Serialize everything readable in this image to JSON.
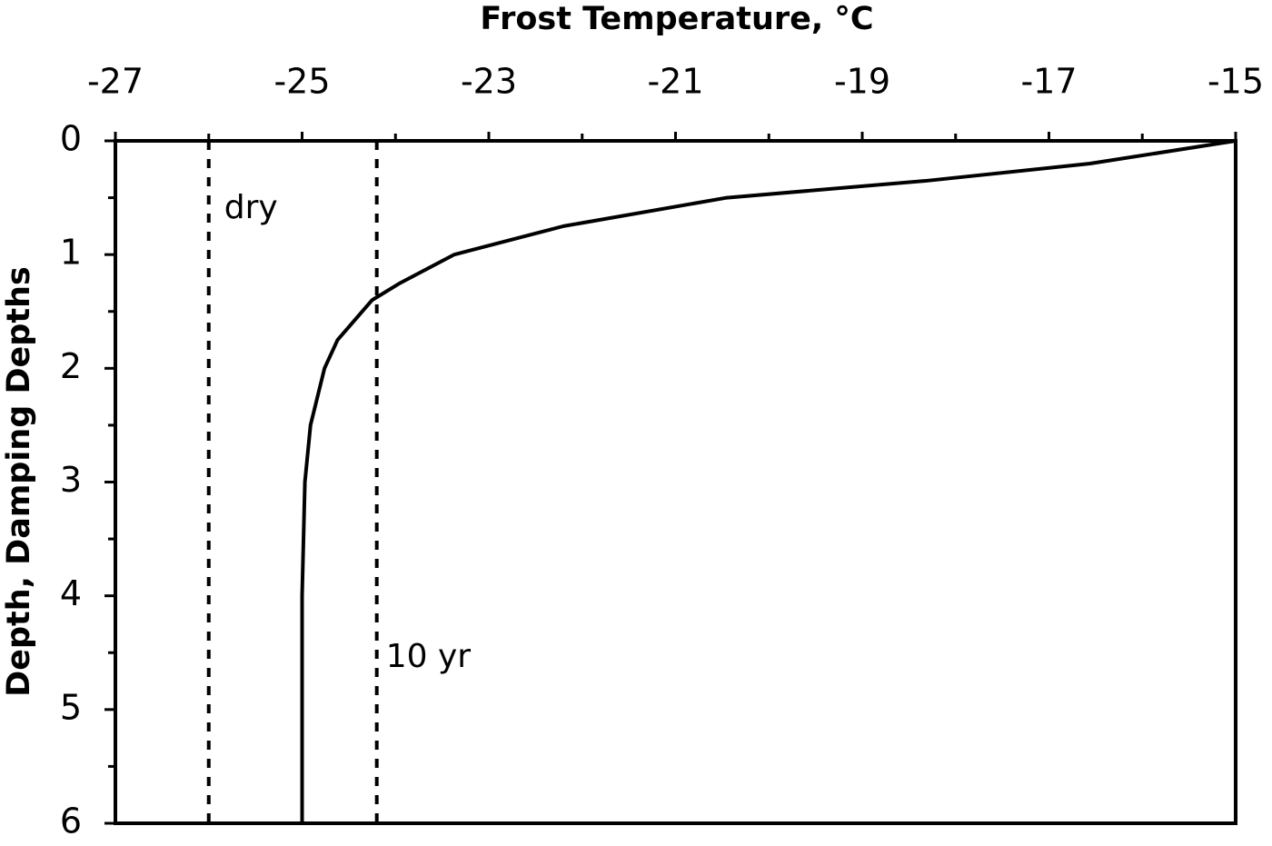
{
  "chart_data": {
    "type": "line",
    "title": "Frost Temperature, °C",
    "ylabel": "Depth, Damping Depths",
    "xlim": [
      -27,
      -15
    ],
    "xticks": [
      -27,
      -25,
      -23,
      -21,
      -19,
      -17,
      -15
    ],
    "xminorticks": [
      -26,
      -24,
      -22,
      -20,
      -18,
      -16
    ],
    "ylim": [
      0,
      6
    ],
    "yticks": [
      0,
      1,
      2,
      3,
      4,
      5,
      6
    ],
    "yminorticks": [
      0.5,
      1.5,
      2.5,
      3.5,
      4.5,
      5.5
    ],
    "y_inverted": true,
    "series": [
      {
        "color": "#000000",
        "x": [
          -15,
          -16.56,
          -18.3,
          -20.45,
          -22.2,
          -23.37,
          -23.95,
          -24.25,
          -24.62,
          -24.76,
          -24.91,
          -24.97,
          -25,
          -25
        ],
        "values": [
          0,
          0.2,
          0.35,
          0.5,
          0.75,
          1.0,
          1.25,
          1.4,
          1.75,
          2.0,
          2.5,
          3.0,
          4.0,
          6.0
        ]
      }
    ],
    "reference_lines": [
      {
        "label": "dry",
        "value": -26
      },
      {
        "label": "10 yr",
        "value": -24.2
      }
    ]
  }
}
